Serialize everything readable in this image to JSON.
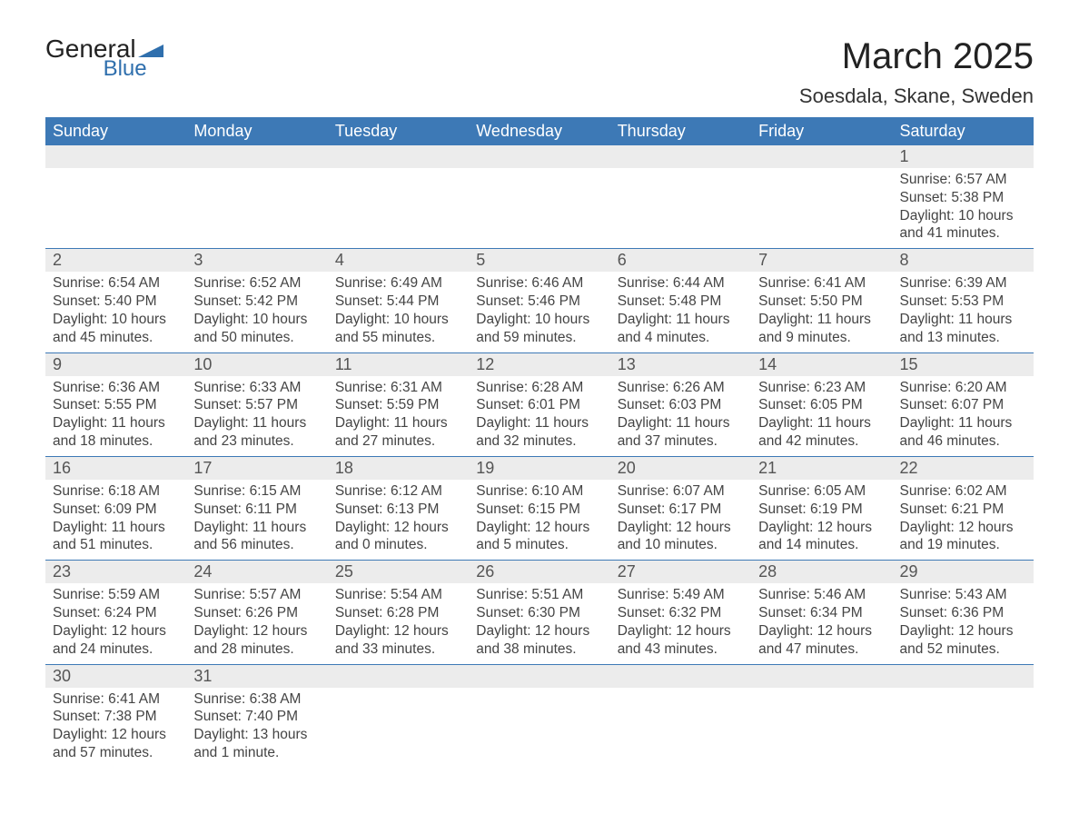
{
  "logo": {
    "brand_top": "General",
    "brand_bottom": "Blue",
    "flag_color": "#2f6fad"
  },
  "title": "March 2025",
  "location": "Soesdala, Skane, Sweden",
  "colors": {
    "header_bg": "#3d79b6",
    "header_text": "#ffffff",
    "daynum_bg": "#ececec",
    "row_border": "#3d79b6",
    "body_text": "#444444",
    "page_bg": "#ffffff"
  },
  "typography": {
    "title_fontsize": 40,
    "location_fontsize": 22,
    "header_fontsize": 18,
    "daynum_fontsize": 18,
    "detail_fontsize": 15.5
  },
  "weekdays": [
    "Sunday",
    "Monday",
    "Tuesday",
    "Wednesday",
    "Thursday",
    "Friday",
    "Saturday"
  ],
  "weeks": [
    [
      null,
      null,
      null,
      null,
      null,
      null,
      {
        "n": "1",
        "sunrise": "Sunrise: 6:57 AM",
        "sunset": "Sunset: 5:38 PM",
        "dl1": "Daylight: 10 hours",
        "dl2": "and 41 minutes."
      }
    ],
    [
      {
        "n": "2",
        "sunrise": "Sunrise: 6:54 AM",
        "sunset": "Sunset: 5:40 PM",
        "dl1": "Daylight: 10 hours",
        "dl2": "and 45 minutes."
      },
      {
        "n": "3",
        "sunrise": "Sunrise: 6:52 AM",
        "sunset": "Sunset: 5:42 PM",
        "dl1": "Daylight: 10 hours",
        "dl2": "and 50 minutes."
      },
      {
        "n": "4",
        "sunrise": "Sunrise: 6:49 AM",
        "sunset": "Sunset: 5:44 PM",
        "dl1": "Daylight: 10 hours",
        "dl2": "and 55 minutes."
      },
      {
        "n": "5",
        "sunrise": "Sunrise: 6:46 AM",
        "sunset": "Sunset: 5:46 PM",
        "dl1": "Daylight: 10 hours",
        "dl2": "and 59 minutes."
      },
      {
        "n": "6",
        "sunrise": "Sunrise: 6:44 AM",
        "sunset": "Sunset: 5:48 PM",
        "dl1": "Daylight: 11 hours",
        "dl2": "and 4 minutes."
      },
      {
        "n": "7",
        "sunrise": "Sunrise: 6:41 AM",
        "sunset": "Sunset: 5:50 PM",
        "dl1": "Daylight: 11 hours",
        "dl2": "and 9 minutes."
      },
      {
        "n": "8",
        "sunrise": "Sunrise: 6:39 AM",
        "sunset": "Sunset: 5:53 PM",
        "dl1": "Daylight: 11 hours",
        "dl2": "and 13 minutes."
      }
    ],
    [
      {
        "n": "9",
        "sunrise": "Sunrise: 6:36 AM",
        "sunset": "Sunset: 5:55 PM",
        "dl1": "Daylight: 11 hours",
        "dl2": "and 18 minutes."
      },
      {
        "n": "10",
        "sunrise": "Sunrise: 6:33 AM",
        "sunset": "Sunset: 5:57 PM",
        "dl1": "Daylight: 11 hours",
        "dl2": "and 23 minutes."
      },
      {
        "n": "11",
        "sunrise": "Sunrise: 6:31 AM",
        "sunset": "Sunset: 5:59 PM",
        "dl1": "Daylight: 11 hours",
        "dl2": "and 27 minutes."
      },
      {
        "n": "12",
        "sunrise": "Sunrise: 6:28 AM",
        "sunset": "Sunset: 6:01 PM",
        "dl1": "Daylight: 11 hours",
        "dl2": "and 32 minutes."
      },
      {
        "n": "13",
        "sunrise": "Sunrise: 6:26 AM",
        "sunset": "Sunset: 6:03 PM",
        "dl1": "Daylight: 11 hours",
        "dl2": "and 37 minutes."
      },
      {
        "n": "14",
        "sunrise": "Sunrise: 6:23 AM",
        "sunset": "Sunset: 6:05 PM",
        "dl1": "Daylight: 11 hours",
        "dl2": "and 42 minutes."
      },
      {
        "n": "15",
        "sunrise": "Sunrise: 6:20 AM",
        "sunset": "Sunset: 6:07 PM",
        "dl1": "Daylight: 11 hours",
        "dl2": "and 46 minutes."
      }
    ],
    [
      {
        "n": "16",
        "sunrise": "Sunrise: 6:18 AM",
        "sunset": "Sunset: 6:09 PM",
        "dl1": "Daylight: 11 hours",
        "dl2": "and 51 minutes."
      },
      {
        "n": "17",
        "sunrise": "Sunrise: 6:15 AM",
        "sunset": "Sunset: 6:11 PM",
        "dl1": "Daylight: 11 hours",
        "dl2": "and 56 minutes."
      },
      {
        "n": "18",
        "sunrise": "Sunrise: 6:12 AM",
        "sunset": "Sunset: 6:13 PM",
        "dl1": "Daylight: 12 hours",
        "dl2": "and 0 minutes."
      },
      {
        "n": "19",
        "sunrise": "Sunrise: 6:10 AM",
        "sunset": "Sunset: 6:15 PM",
        "dl1": "Daylight: 12 hours",
        "dl2": "and 5 minutes."
      },
      {
        "n": "20",
        "sunrise": "Sunrise: 6:07 AM",
        "sunset": "Sunset: 6:17 PM",
        "dl1": "Daylight: 12 hours",
        "dl2": "and 10 minutes."
      },
      {
        "n": "21",
        "sunrise": "Sunrise: 6:05 AM",
        "sunset": "Sunset: 6:19 PM",
        "dl1": "Daylight: 12 hours",
        "dl2": "and 14 minutes."
      },
      {
        "n": "22",
        "sunrise": "Sunrise: 6:02 AM",
        "sunset": "Sunset: 6:21 PM",
        "dl1": "Daylight: 12 hours",
        "dl2": "and 19 minutes."
      }
    ],
    [
      {
        "n": "23",
        "sunrise": "Sunrise: 5:59 AM",
        "sunset": "Sunset: 6:24 PM",
        "dl1": "Daylight: 12 hours",
        "dl2": "and 24 minutes."
      },
      {
        "n": "24",
        "sunrise": "Sunrise: 5:57 AM",
        "sunset": "Sunset: 6:26 PM",
        "dl1": "Daylight: 12 hours",
        "dl2": "and 28 minutes."
      },
      {
        "n": "25",
        "sunrise": "Sunrise: 5:54 AM",
        "sunset": "Sunset: 6:28 PM",
        "dl1": "Daylight: 12 hours",
        "dl2": "and 33 minutes."
      },
      {
        "n": "26",
        "sunrise": "Sunrise: 5:51 AM",
        "sunset": "Sunset: 6:30 PM",
        "dl1": "Daylight: 12 hours",
        "dl2": "and 38 minutes."
      },
      {
        "n": "27",
        "sunrise": "Sunrise: 5:49 AM",
        "sunset": "Sunset: 6:32 PM",
        "dl1": "Daylight: 12 hours",
        "dl2": "and 43 minutes."
      },
      {
        "n": "28",
        "sunrise": "Sunrise: 5:46 AM",
        "sunset": "Sunset: 6:34 PM",
        "dl1": "Daylight: 12 hours",
        "dl2": "and 47 minutes."
      },
      {
        "n": "29",
        "sunrise": "Sunrise: 5:43 AM",
        "sunset": "Sunset: 6:36 PM",
        "dl1": "Daylight: 12 hours",
        "dl2": "and 52 minutes."
      }
    ],
    [
      {
        "n": "30",
        "sunrise": "Sunrise: 6:41 AM",
        "sunset": "Sunset: 7:38 PM",
        "dl1": "Daylight: 12 hours",
        "dl2": "and 57 minutes."
      },
      {
        "n": "31",
        "sunrise": "Sunrise: 6:38 AM",
        "sunset": "Sunset: 7:40 PM",
        "dl1": "Daylight: 13 hours",
        "dl2": "and 1 minute."
      },
      null,
      null,
      null,
      null,
      null
    ]
  ]
}
